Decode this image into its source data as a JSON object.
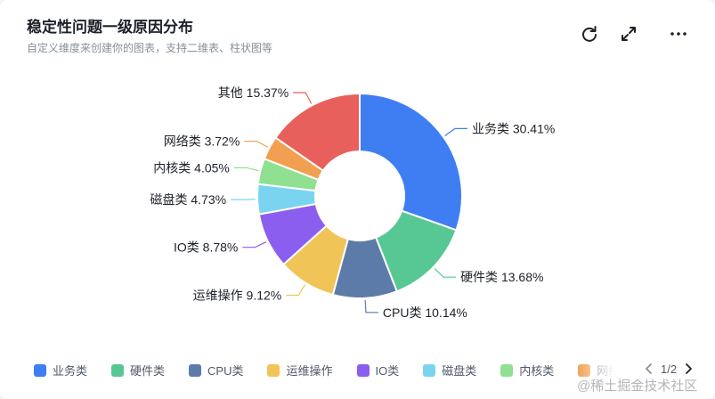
{
  "header": {
    "title": "稳定性问题一级原因分布",
    "subtitle": "自定义维度来创建你的图表，支持二维表、柱状图等"
  },
  "toolbar": {
    "refresh_icon": "refresh-icon",
    "expand_icon": "expand-icon",
    "more_icon": "more-icon"
  },
  "chart_data": {
    "type": "pie",
    "donut": true,
    "title": "稳定性问题一级原因分布",
    "categories": [
      "业务类",
      "硬件类",
      "CPU类",
      "运维操作",
      "IO类",
      "磁盘类",
      "内核类",
      "网络类",
      "其他"
    ],
    "values": [
      30.41,
      13.68,
      10.14,
      9.12,
      8.78,
      4.73,
      4.05,
      3.72,
      15.37
    ],
    "labels": [
      "业务类 30.41%",
      "硬件类 13.68%",
      "CPU类 10.14%",
      "运维操作 9.12%",
      "IO类 8.78%",
      "磁盘类 4.73%",
      "内核类 4.05%",
      "网络类 3.72%",
      "其他 15.37%"
    ],
    "colors": [
      "#3f7ef2",
      "#57c894",
      "#5d7ba8",
      "#f0c457",
      "#8c5ef0",
      "#7ad4f0",
      "#8fe090",
      "#f0a050",
      "#e8605c"
    ],
    "legend_position": "bottom"
  },
  "legend": {
    "items": [
      "业务类",
      "硬件类",
      "CPU类",
      "运维操作",
      "IO类",
      "磁盘类",
      "内核类",
      "网络类"
    ],
    "page": "1/2"
  },
  "watermark": "@稀土掘金技术社区"
}
